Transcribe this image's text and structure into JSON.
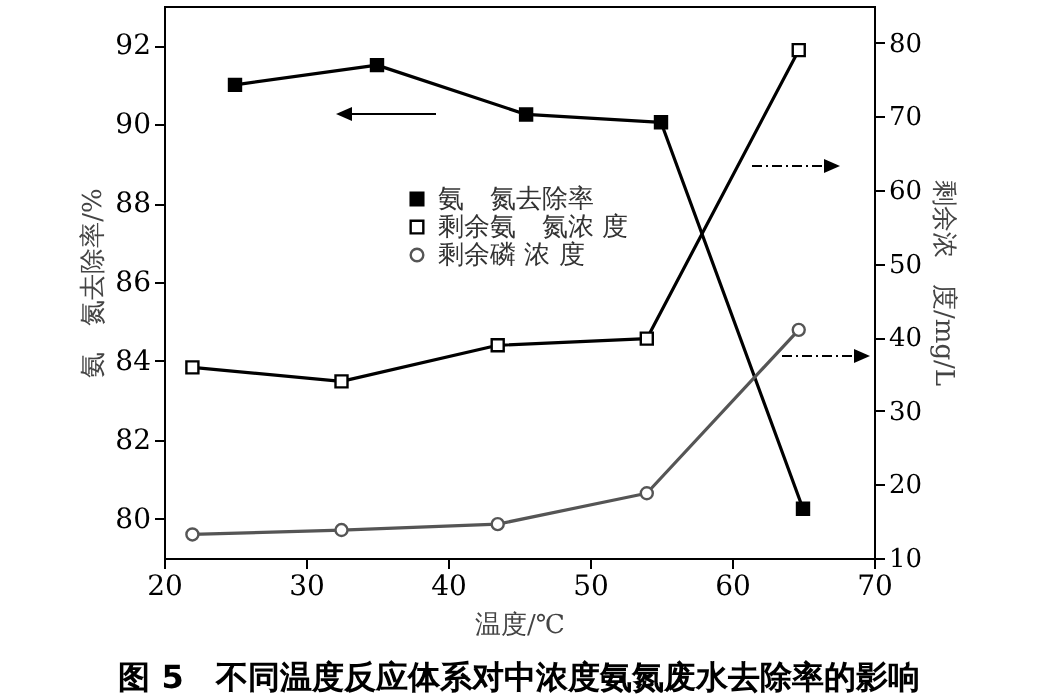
{
  "chart_data": {
    "type": "line",
    "title": "图 5　不同温度反应体系对中浓度氨氮废水去除率的影响",
    "xlabel": "温度/℃",
    "ylabel": "氨　氮去除率/%",
    "y2label": "剩余浓　度/mg/L",
    "xlim": [
      20,
      70
    ],
    "xticks": [
      20,
      30,
      40,
      50,
      60,
      70
    ],
    "ylim": [
      79,
      93
    ],
    "yticks": [
      80,
      82,
      84,
      86,
      88,
      90,
      92
    ],
    "y2lim": [
      10,
      85
    ],
    "y2ticks": [
      10,
      20,
      30,
      40,
      50,
      60,
      70,
      80
    ],
    "grid": false,
    "legend": "top",
    "line_style": "solid",
    "series": [
      {
        "name": "氨　氮去除率",
        "color": "#000000",
        "marker": "square",
        "x": [
          25,
          35,
          45.5,
          55,
          65
        ],
        "values": [
          91.0,
          91.5,
          90.25,
          90.05,
          80.25
        ]
      },
      {
        "name": "剩余氨　氮浓 度",
        "color": "#000000",
        "marker": "square",
        "axis": "y2",
        "x": [
          22,
          32.5,
          43.5,
          54,
          64.7
        ],
        "values": [
          35.9,
          34.0,
          38.9,
          39.8,
          79.0
        ]
      },
      {
        "name": "剩余磷 浓 度",
        "color": "#555555",
        "marker": "circle",
        "axis": "y2",
        "x": [
          22,
          32.5,
          43.5,
          54,
          64.7
        ],
        "values": [
          13.2,
          13.8,
          14.6,
          18.8,
          41.0
        ]
      }
    ]
  }
}
